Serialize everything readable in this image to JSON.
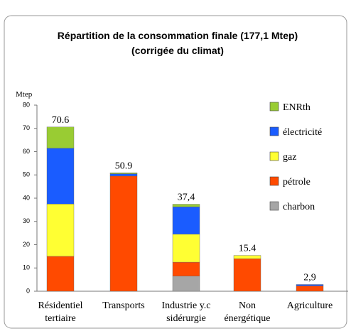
{
  "chart_data": {
    "type": "stacked_bar",
    "title": [
      "Répartition de la consommation finale (177,1 Mtep)",
      "(corrigée du climat)"
    ],
    "y_label": "Mtep",
    "categories": [
      [
        "Résidentiel",
        "tertiaire"
      ],
      [
        "Transports"
      ],
      [
        "Industrie y.c",
        "sidérurgie"
      ],
      [
        "Non",
        "énergétique"
      ],
      [
        "Agriculture"
      ]
    ],
    "series": [
      {
        "name": "charbon",
        "color": "#a6a6a6",
        "values": [
          0,
          0,
          6.5,
          0,
          0
        ]
      },
      {
        "name": "pétrole",
        "color": "#ff4a00",
        "values": [
          15,
          49.5,
          6,
          14,
          2.3
        ]
      },
      {
        "name": "gaz",
        "color": "#ffff33",
        "values": [
          22.5,
          0,
          12,
          1.4,
          0
        ]
      },
      {
        "name": "électricité",
        "color": "#1a5cff",
        "values": [
          24,
          1,
          11.8,
          0,
          0.6
        ]
      },
      {
        "name": "ENRth",
        "color": "#99cc33",
        "values": [
          9.1,
          0.4,
          1.1,
          0,
          0
        ]
      }
    ],
    "totals": [
      70.6,
      50.9,
      37.4,
      15.4,
      2.9
    ],
    "total_labels": [
      "70.6",
      "50.9",
      "37,4",
      "15.4",
      "2,9"
    ],
    "ylim": [
      0,
      80
    ],
    "yticks": [
      0,
      10,
      20,
      30,
      40,
      50,
      60,
      70,
      80
    ]
  }
}
